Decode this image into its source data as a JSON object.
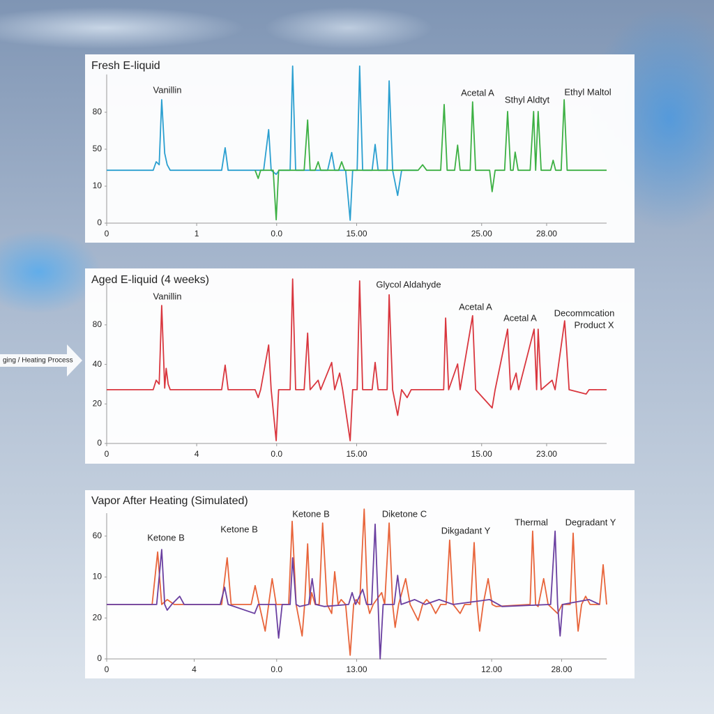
{
  "process_label": "ging / Heating Process",
  "chart_data": [
    {
      "type": "line",
      "title": "Fresh E-liquid",
      "annotations": [
        "Vanillin",
        "Acetal A",
        "Sthyl Aldtyt",
        "Ethyl Maltol"
      ],
      "xlim": [
        0,
        100
      ],
      "ylim": [
        0,
        4.4
      ],
      "xticks": [
        0,
        {
          "value": 18,
          "label": "1"
        },
        {
          "value": 34,
          "label": "0.0"
        },
        {
          "value": 50,
          "label": "15.00"
        },
        {
          "value": 75,
          "label": "25.00"
        },
        {
          "value": 88,
          "label": "28.00"
        }
      ],
      "yticks": [
        0,
        {
          "value": 1,
          "label": "10"
        },
        {
          "value": 2,
          "label": "50"
        },
        {
          "value": 3,
          "label": "80"
        }
      ],
      "series": [
        {
          "color": "#2a9fd0",
          "x": [
            0,
            9.3,
            9.9,
            10.5,
            11.0,
            11.6,
            12.1,
            12.7,
            23.0,
            23.7,
            24.3,
            31.4,
            32.4,
            32.9,
            33.9,
            34.5,
            36.7,
            37.2,
            37.8,
            44.2,
            45.0,
            45.6,
            47.8,
            48.7,
            49.2,
            50.1,
            50.6,
            51.2,
            53.1,
            53.7,
            54.3,
            56.1,
            56.5,
            57.2,
            58.2,
            59.0,
            62.1
          ],
          "values": [
            1.43,
            1.43,
            1.66,
            1.58,
            3.34,
            1.89,
            1.58,
            1.43,
            1.43,
            2.04,
            1.43,
            1.43,
            2.53,
            1.43,
            1.32,
            1.43,
            1.43,
            4.25,
            1.43,
            1.43,
            1.91,
            1.43,
            1.43,
            0.08,
            1.43,
            1.43,
            4.25,
            1.43,
            1.43,
            2.13,
            1.43,
            1.43,
            3.85,
            1.43,
            0.75,
            1.43,
            1.43
          ]
        },
        {
          "color": "#3cb043",
          "x": [
            29.7,
            30.3,
            30.8,
            33.3,
            33.9,
            34.4,
            39.5,
            40.2,
            40.7,
            41.7,
            42.3,
            42.8,
            46.4,
            47.0,
            47.6,
            62.3,
            63.2,
            64.0,
            66.8,
            67.5,
            68.1,
            69.6,
            70.2,
            70.7,
            72.7,
            73.2,
            73.8,
            76.6,
            77.1,
            77.7,
            79.6,
            80.2,
            80.8,
            81.3,
            81.7,
            82.3,
            84.7,
            85.4,
            85.8,
            86.3,
            86.9,
            88.8,
            89.3,
            89.8,
            90.9,
            91.5,
            92.1,
            100
          ],
          "values": [
            1.43,
            1.21,
            1.43,
            1.43,
            0.09,
            1.43,
            1.43,
            2.79,
            1.43,
            1.43,
            1.66,
            1.43,
            1.43,
            1.66,
            1.43,
            1.43,
            1.58,
            1.43,
            1.43,
            3.21,
            1.43,
            1.43,
            2.11,
            1.43,
            1.43,
            3.28,
            1.43,
            1.43,
            0.85,
            1.43,
            1.43,
            3.02,
            1.43,
            1.43,
            1.92,
            1.43,
            1.43,
            3.02,
            1.43,
            3.02,
            1.43,
            1.43,
            1.7,
            1.43,
            1.43,
            3.34,
            1.43,
            1.43
          ]
        }
      ]
    },
    {
      "type": "line",
      "title": "Aged E-liquid (4 weeks)",
      "annotations": [
        "Vanillin",
        "Glycol Aldahyde",
        "Acetal A",
        "Acetal A",
        "Decommcation",
        "Product X"
      ],
      "xlim": [
        0,
        100
      ],
      "ylim": [
        0,
        4.4
      ],
      "xticks": [
        0,
        {
          "value": 18,
          "label": "4"
        },
        {
          "value": 34,
          "label": "0.0"
        },
        {
          "value": 50,
          "label": "15.00"
        },
        {
          "value": 75,
          "label": "15.00"
        },
        {
          "value": 88,
          "label": "23.00"
        }
      ],
      "yticks": [
        0,
        {
          "value": 1,
          "label": "20"
        },
        {
          "value": 2,
          "label": "40"
        },
        {
          "value": 3,
          "label": "80"
        }
      ],
      "series": [
        {
          "color": "#d9363e",
          "x": [
            0,
            9.3,
            9.9,
            10.5,
            11.0,
            11.6,
            11.9,
            12.3,
            12.7,
            23.0,
            23.7,
            24.3,
            29.7,
            30.3,
            30.8,
            32.4,
            32.9,
            33.9,
            34.4,
            36.7,
            37.2,
            37.8,
            39.5,
            40.2,
            40.7,
            42.3,
            42.8,
            45.0,
            45.6,
            46.6,
            47.2,
            48.7,
            49.2,
            50.1,
            50.6,
            51.2,
            53.1,
            53.7,
            54.3,
            56.1,
            56.5,
            57.2,
            58.2,
            59.0,
            60.1,
            60.9,
            67.4,
            67.8,
            68.4,
            70.2,
            70.7,
            73.2,
            73.8,
            77.1,
            77.7,
            80.2,
            80.8,
            81.9,
            82.4,
            85.5,
            86.0,
            86.3,
            86.9,
            89.1,
            89.7,
            91.6,
            92.0,
            92.5,
            95.9,
            96.5,
            100
          ],
          "values": [
            1.36,
            1.36,
            1.6,
            1.5,
            3.49,
            1.4,
            1.9,
            1.5,
            1.36,
            1.36,
            1.98,
            1.36,
            1.36,
            1.16,
            1.36,
            2.49,
            1.36,
            0.07,
            1.36,
            1.36,
            4.16,
            1.36,
            1.36,
            2.79,
            1.36,
            1.6,
            1.36,
            2.05,
            1.36,
            1.78,
            1.36,
            0.07,
            1.36,
            1.36,
            4.11,
            1.36,
            1.36,
            2.05,
            1.36,
            1.36,
            3.76,
            1.36,
            0.71,
            1.36,
            1.16,
            1.36,
            1.36,
            3.17,
            1.36,
            2.01,
            1.36,
            3.23,
            1.36,
            0.9,
            1.36,
            2.89,
            1.36,
            1.78,
            1.36,
            2.89,
            1.36,
            2.89,
            1.36,
            1.6,
            1.36,
            3.1,
            2.4,
            1.36,
            1.25,
            1.36,
            1.36
          ]
        }
      ]
    },
    {
      "type": "line",
      "title": "Vapor After Heating (Simulated)",
      "annotations": [
        "Ketone B",
        "Ketone B",
        "Ketone B",
        "Diketone C",
        "Dikgadant Y",
        "Thermal",
        "Degradant Y"
      ],
      "xlim": [
        0,
        100
      ],
      "ylim": [
        0,
        3.9
      ],
      "xticks": [
        0,
        {
          "value": 17.5,
          "label": "4"
        },
        {
          "value": 34,
          "label": "0.0"
        },
        {
          "value": 50,
          "label": "13.00"
        },
        {
          "value": 77,
          "label": "12.00"
        },
        {
          "value": 91,
          "label": "28.00"
        }
      ],
      "yticks": [
        0,
        {
          "value": 1,
          "label": "20"
        },
        {
          "value": 2,
          "label": "10"
        },
        {
          "value": 3,
          "label": "60"
        }
      ],
      "series": [
        {
          "color": "#e8643a",
          "x": [
            0,
            9.1,
            10.2,
            11.0,
            12.1,
            13.5,
            23.0,
            24.1,
            24.9,
            28.9,
            29.7,
            30.5,
            31.7,
            32.4,
            33.1,
            33.9,
            36.4,
            37.1,
            37.9,
            39.1,
            39.6,
            40.2,
            40.7,
            41.0,
            41.7,
            42.5,
            43.2,
            44.1,
            45.0,
            45.6,
            46.3,
            46.9,
            47.8,
            48.7,
            49.4,
            49.9,
            50.6,
            51.5,
            52.2,
            52.6,
            53.3,
            55.0,
            55.6,
            56.5,
            57.2,
            57.7,
            58.4,
            59.8,
            60.7,
            62.3,
            63.2,
            64.0,
            64.9,
            65.8,
            66.8,
            67.9,
            68.6,
            69.3,
            70.7,
            71.6,
            72.8,
            73.5,
            74.1,
            74.6,
            75.3,
            76.3,
            77.1,
            77.9,
            84.7,
            85.2,
            85.8,
            86.3,
            87.4,
            88.3,
            90.2,
            91.1,
            92.7,
            93.3,
            93.9,
            94.3,
            95.0,
            95.8,
            96.7,
            98.6,
            99.3,
            100
          ],
          "values": [
            1.33,
            1.33,
            2.61,
            1.33,
            1.45,
            1.33,
            1.33,
            2.47,
            1.33,
            1.33,
            1.79,
            1.33,
            0.68,
            1.33,
            1.96,
            1.33,
            1.33,
            3.36,
            1.33,
            0.56,
            1.33,
            2.81,
            1.33,
            1.62,
            1.33,
            1.33,
            3.32,
            1.33,
            1.11,
            2.13,
            1.33,
            1.45,
            1.33,
            0.09,
            1.33,
            1.45,
            1.33,
            3.66,
            1.33,
            1.11,
            1.33,
            1.62,
            1.33,
            3.32,
            1.33,
            0.77,
            1.33,
            1.96,
            1.33,
            0.94,
            1.33,
            1.45,
            1.33,
            1.11,
            1.33,
            1.33,
            2.9,
            1.33,
            1.11,
            1.33,
            1.33,
            2.84,
            1.33,
            0.68,
            1.33,
            1.96,
            1.33,
            1.28,
            1.33,
            3.12,
            1.33,
            1.28,
            1.96,
            1.33,
            1.11,
            1.33,
            1.33,
            3.07,
            1.33,
            0.68,
            1.33,
            1.53,
            1.33,
            1.33,
            2.3,
            1.33
          ]
        },
        {
          "color": "#6a3fa0",
          "x": [
            0,
            10.0,
            11.0,
            11.6,
            12.1,
            13.0,
            14.6,
            15.5,
            22.7,
            23.6,
            24.3,
            29.6,
            30.3,
            33.8,
            34.4,
            35.1,
            36.7,
            37.2,
            37.9,
            38.6,
            40.4,
            41.1,
            41.8,
            43.5,
            48.4,
            49.1,
            49.8,
            51.2,
            52.0,
            53.0,
            53.7,
            54.3,
            54.7,
            55.3,
            57.5,
            58.2,
            58.9,
            61.6,
            63.7,
            66.5,
            69.3,
            76.6,
            79.1,
            88.8,
            89.7,
            90.2,
            90.7,
            91.2,
            96.5,
            98.6
          ],
          "values": [
            1.33,
            1.33,
            2.67,
            1.33,
            1.19,
            1.33,
            1.53,
            1.33,
            1.33,
            1.75,
            1.33,
            1.11,
            1.33,
            1.33,
            0.51,
            1.33,
            1.33,
            2.47,
            1.33,
            1.28,
            1.33,
            1.96,
            1.33,
            1.28,
            1.33,
            1.62,
            1.33,
            1.7,
            1.33,
            1.33,
            3.29,
            1.33,
            0,
            1.33,
            1.33,
            2.04,
            1.33,
            1.45,
            1.33,
            1.45,
            1.33,
            1.45,
            1.28,
            1.33,
            3.12,
            1.33,
            0.56,
            1.33,
            1.45,
            1.33
          ]
        }
      ]
    }
  ]
}
